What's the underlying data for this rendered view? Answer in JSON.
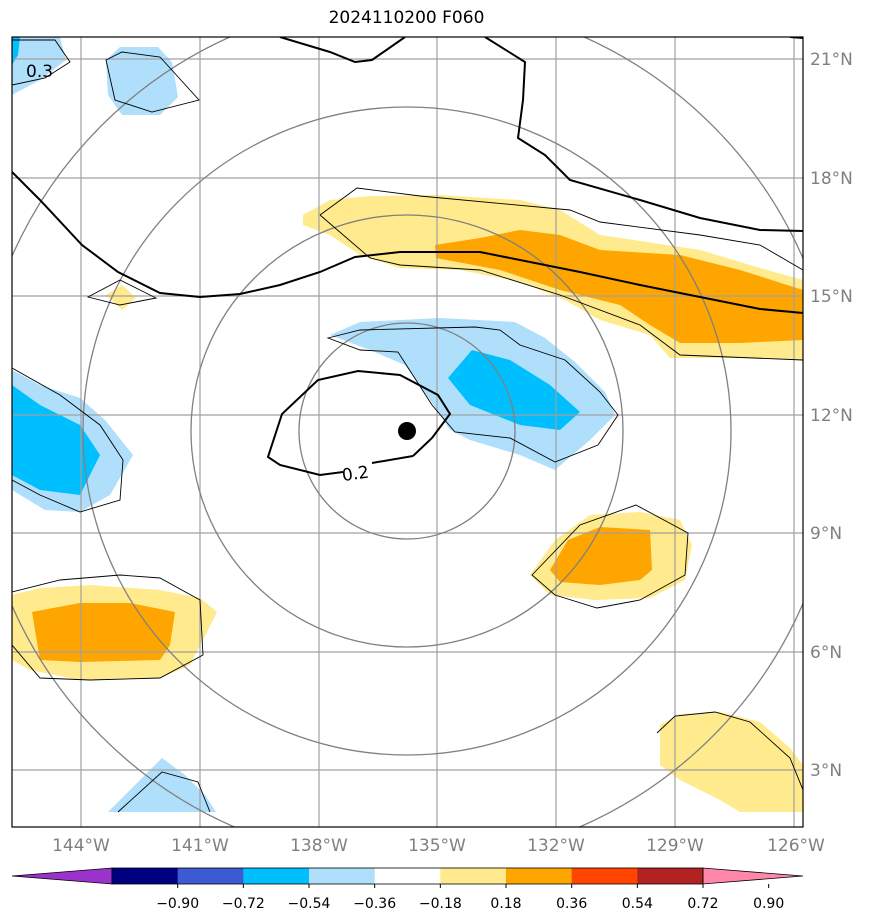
{
  "title": "2024110200 F060",
  "map": {
    "lat_labels": [
      "21°N",
      "18°N",
      "15°N",
      "12°N",
      "9°N",
      "6°N",
      "3°N"
    ],
    "lon_labels": [
      "144°W",
      "141°W",
      "138°W",
      "135°W",
      "132°W",
      "129°W",
      "126°W"
    ],
    "contour_labels": [
      "0.3",
      "0.2"
    ],
    "colors": {
      "pos_low": "#ffea8d",
      "pos_mid": "#ffa500",
      "neg_low": "#afdffb",
      "neg_mid": "#00bfff",
      "gridline": "#a0a0a0",
      "range_ring": "#808080",
      "axis_label": "#808080"
    },
    "storm_center_marker": "black-dot"
  },
  "colorbar": {
    "tick_labels": [
      "−0.90",
      "−0.72",
      "−0.54",
      "−0.36",
      "−0.18",
      "0.18",
      "0.36",
      "0.54",
      "0.72",
      "0.90"
    ],
    "colors": [
      "#9933cc",
      "#000080",
      "#3c5ad2",
      "#00bfff",
      "#afdffb",
      "#ffffff",
      "#ffea8d",
      "#ffa500",
      "#ff4500",
      "#b22222",
      "#ff88aa"
    ]
  }
}
